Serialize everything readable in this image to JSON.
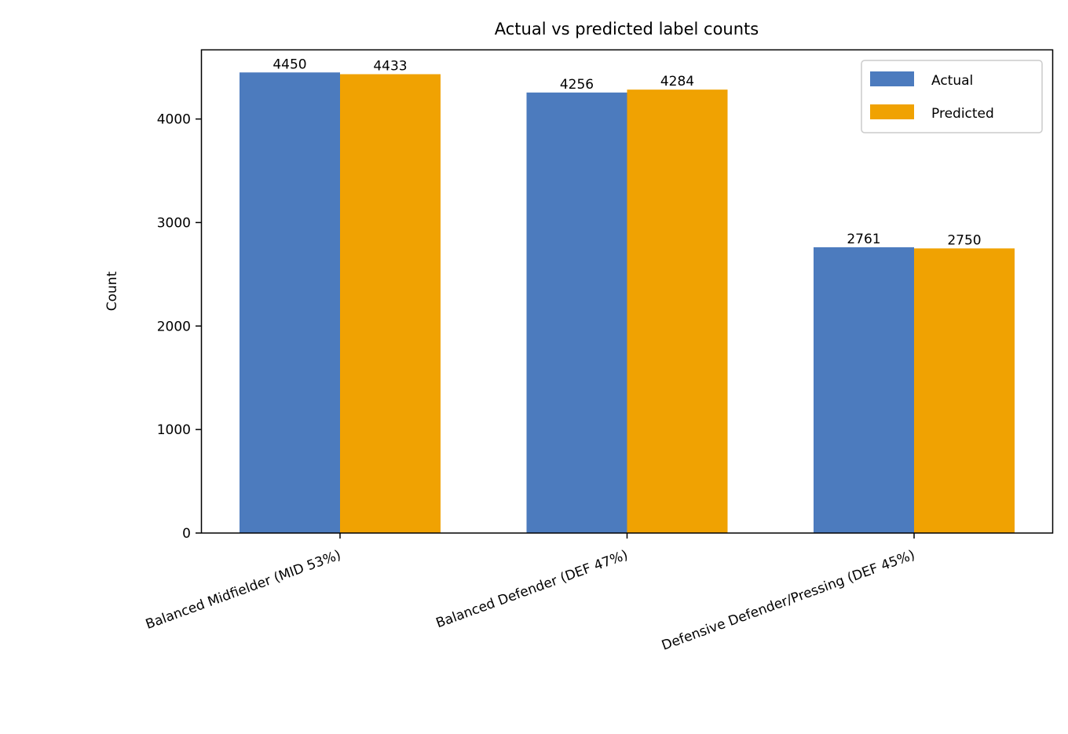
{
  "chart_data": {
    "type": "bar",
    "title": "Actual vs predicted label counts",
    "xlabel": "",
    "ylabel": "Count",
    "categories": [
      "Balanced Midfielder (MID 53%)",
      "Balanced Defender (DEF 47%)",
      "Defensive Defender/Pressing (DEF 45%)"
    ],
    "series": [
      {
        "name": "Actual",
        "values": [
          4450,
          4256,
          2761
        ],
        "color": "#4c7bbe"
      },
      {
        "name": "Predicted",
        "values": [
          4433,
          4284,
          2750
        ],
        "color": "#f0a202"
      }
    ],
    "ylim": [
      0,
      4672
    ],
    "yticks": [
      0,
      1000,
      2000,
      3000,
      4000
    ],
    "grid": false,
    "legend": "top-right",
    "data_labels": true
  }
}
